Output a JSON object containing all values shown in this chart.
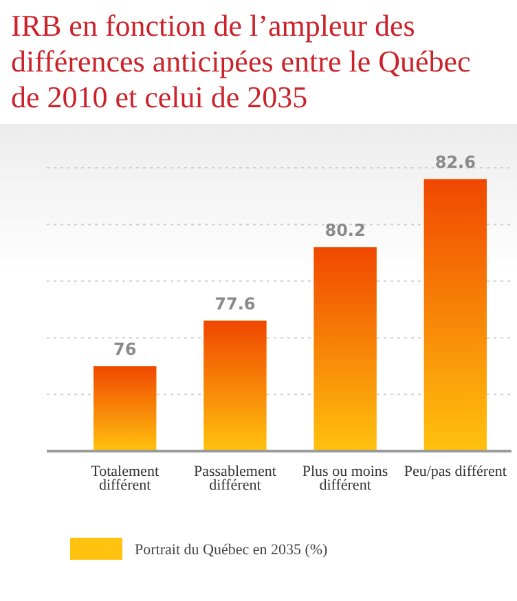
{
  "chart_data": {
    "type": "bar",
    "title": "IRB en fonction de l’ampleur des différences anticipées entre le Québec de 2010 et celui de 2035",
    "categories": [
      "Totalement différent",
      "Passablement différent",
      "Plus ou moins différent",
      "Peu/pas différent"
    ],
    "series": [
      {
        "name": "Portrait du Québec en 2035 (%)",
        "color": "#ffc20e",
        "values": [
          76,
          77.6,
          80.2,
          82.6
        ]
      }
    ],
    "ylim": [
      73,
      83
    ],
    "yticks": [
      {
        "value": 75,
        "label": null
      },
      {
        "value": 77,
        "label": null
      },
      {
        "value": 79,
        "label": null
      },
      {
        "value": 81,
        "label": null
      },
      {
        "value": 83,
        "label": null
      }
    ],
    "tick_labels": "x",
    "grid": "y",
    "data_labels": true,
    "legend": "bottom"
  }
}
